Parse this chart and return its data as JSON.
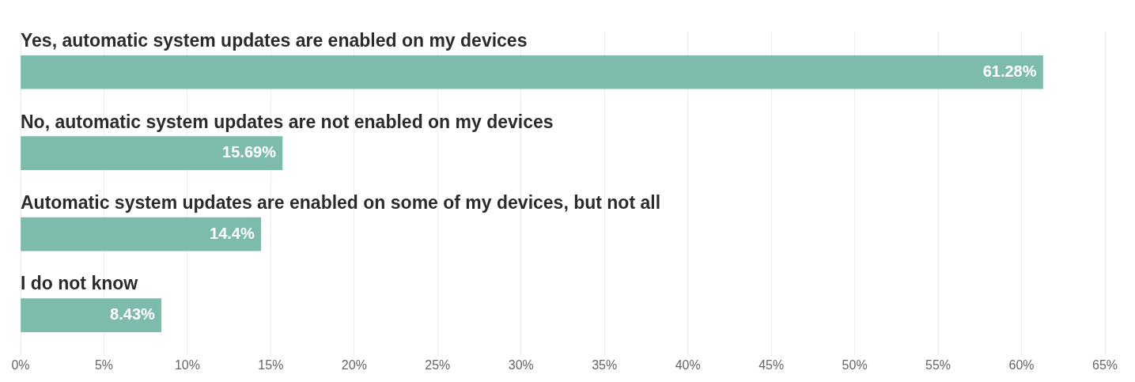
{
  "chart_data": {
    "type": "bar",
    "orientation": "horizontal",
    "categories": [
      "Yes, automatic system updates are enabled on my devices",
      "No, automatic system updates are not enabled on my devices",
      "Automatic system updates are enabled on some of my devices, but not all",
      "I do not know"
    ],
    "values": [
      61.28,
      15.69,
      14.4,
      8.43
    ],
    "value_labels": [
      "61.28%",
      "15.69%",
      "14.4%",
      "8.43%"
    ],
    "color": "#7dbcac",
    "xlim": [
      0,
      65
    ],
    "xticks": [
      {
        "value": 0,
        "label": "0%"
      },
      {
        "value": 5,
        "label": "5%"
      },
      {
        "value": 10,
        "label": "10%"
      },
      {
        "value": 15,
        "label": "15%"
      },
      {
        "value": 20,
        "label": "20%"
      },
      {
        "value": 25,
        "label": "25%"
      },
      {
        "value": 30,
        "label": "30%"
      },
      {
        "value": 35,
        "label": "35%"
      },
      {
        "value": 40,
        "label": "40%"
      },
      {
        "value": 45,
        "label": "45%"
      },
      {
        "value": 50,
        "label": "50%"
      },
      {
        "value": 55,
        "label": "55%"
      },
      {
        "value": 60,
        "label": "60%"
      },
      {
        "value": 65,
        "label": "65%"
      }
    ],
    "grid": "x",
    "legend": false
  }
}
